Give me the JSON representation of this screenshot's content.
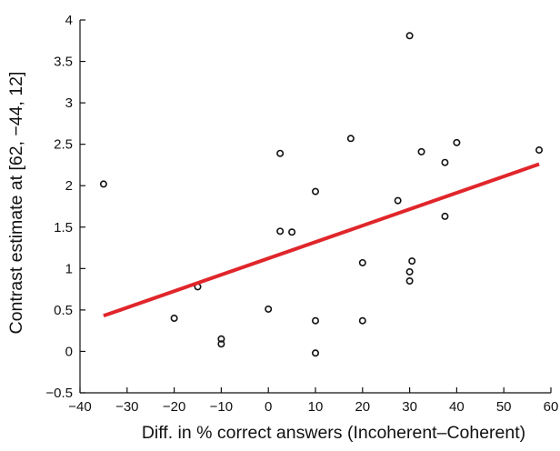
{
  "chart_data": {
    "type": "scatter",
    "title": "",
    "xlabel": "Diff. in % correct answers (Incoherent–Coherent)",
    "ylabel": "Contrast estimate at [62, −44, 12]",
    "xlim": [
      -40,
      60
    ],
    "ylim": [
      -0.5,
      4
    ],
    "xticks": [
      -40,
      -30,
      -20,
      -10,
      0,
      10,
      20,
      30,
      40,
      50,
      60
    ],
    "yticks": [
      -0.5,
      0,
      0.5,
      1,
      1.5,
      2,
      2.5,
      3,
      3.5,
      4
    ],
    "xtick_labels": [
      "−40",
      "−30",
      "−20",
      "−10",
      "0",
      "10",
      "20",
      "30",
      "40",
      "50",
      "60"
    ],
    "ytick_labels": [
      "−0.5",
      "0",
      "0.5",
      "1",
      "1.5",
      "2",
      "2.5",
      "3",
      "3.5",
      "4"
    ],
    "grid": false,
    "points": [
      {
        "x": -35,
        "y": 2.02
      },
      {
        "x": -20,
        "y": 0.4
      },
      {
        "x": -15,
        "y": 0.78
      },
      {
        "x": -10,
        "y": 0.15
      },
      {
        "x": -10,
        "y": 0.09
      },
      {
        "x": 0,
        "y": 0.51
      },
      {
        "x": 2.5,
        "y": 2.39
      },
      {
        "x": 2.5,
        "y": 1.45
      },
      {
        "x": 5,
        "y": 1.44
      },
      {
        "x": 10,
        "y": 1.93
      },
      {
        "x": 10,
        "y": 0.37
      },
      {
        "x": 10,
        "y": -0.02
      },
      {
        "x": 17.5,
        "y": 2.57
      },
      {
        "x": 20,
        "y": 1.07
      },
      {
        "x": 20,
        "y": 0.37
      },
      {
        "x": 27.5,
        "y": 1.82
      },
      {
        "x": 30,
        "y": 3.81
      },
      {
        "x": 30,
        "y": 0.96
      },
      {
        "x": 30,
        "y": 0.85
      },
      {
        "x": 30.5,
        "y": 1.09
      },
      {
        "x": 32.5,
        "y": 2.41
      },
      {
        "x": 37.5,
        "y": 2.28
      },
      {
        "x": 37.5,
        "y": 1.63
      },
      {
        "x": 40,
        "y": 2.52
      },
      {
        "x": 57.5,
        "y": 2.43
      }
    ],
    "fit_line": {
      "x": [
        -35,
        57.5
      ],
      "y": [
        0.43,
        2.26
      ],
      "color": "#e0262b"
    }
  }
}
